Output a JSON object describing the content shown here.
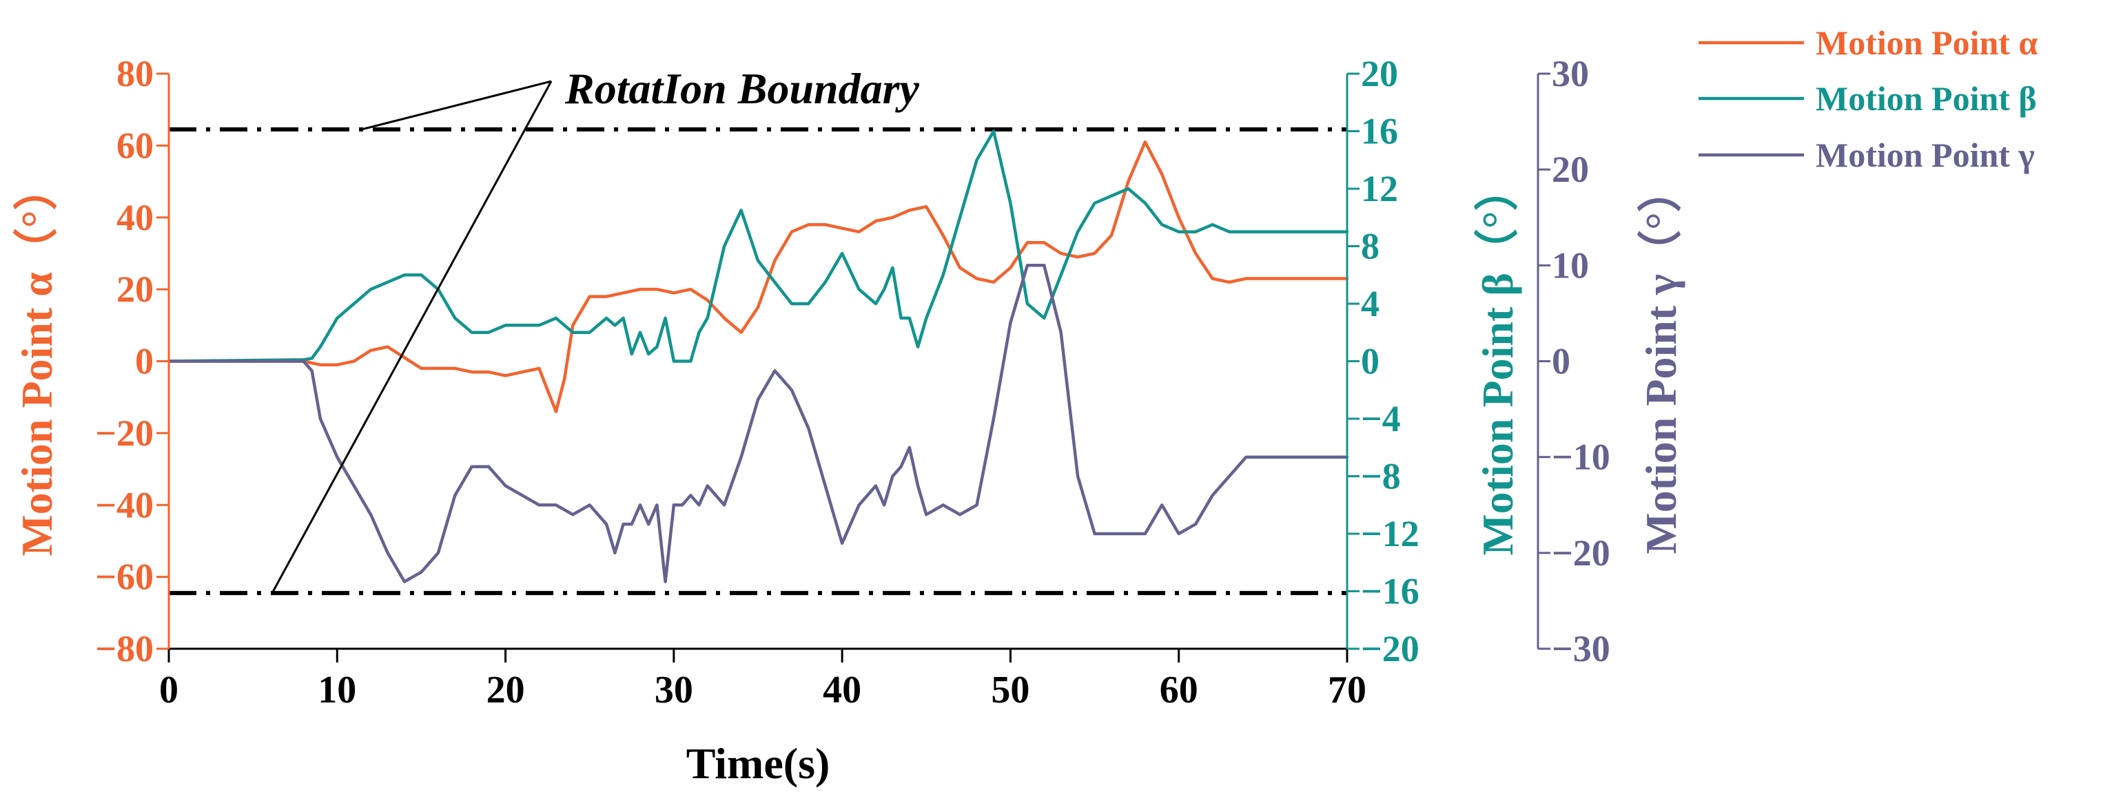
{
  "colors": {
    "alpha": "#F26430",
    "beta": "#12948E",
    "gamma": "#65628F",
    "axis": "#000000"
  },
  "chart_data": {
    "type": "line",
    "title": "",
    "xlabel": "Time(s)",
    "xlim": [
      0,
      70
    ],
    "xticks": [
      0,
      10,
      20,
      30,
      40,
      50,
      60,
      70
    ],
    "grid": false,
    "legend_position": "top-right, outside plot",
    "axes": [
      {
        "id": "alpha",
        "label": "Motion Point α（°）",
        "side": "left",
        "ylim": [
          -80,
          80
        ],
        "ticks": [
          -80,
          -60,
          -40,
          -20,
          0,
          20,
          40,
          60,
          80
        ]
      },
      {
        "id": "beta",
        "label": "Motion Point β（°）",
        "side": "right",
        "ylim": [
          -20,
          20
        ],
        "ticks": [
          -20,
          -16,
          -12,
          -8,
          -4,
          0,
          4,
          8,
          12,
          16,
          20
        ]
      },
      {
        "id": "gamma",
        "label": "Motion Point γ（°）",
        "side": "right-offset",
        "ylim": [
          -30,
          30
        ],
        "ticks": [
          -30,
          -20,
          -10,
          0,
          10,
          20,
          30
        ]
      }
    ],
    "series": [
      {
        "name": "Motion Point α",
        "axis": "alpha",
        "x": [
          0,
          8,
          9,
          10,
          11,
          12,
          13,
          14,
          15,
          16,
          17,
          18,
          19,
          20,
          21,
          22,
          22.5,
          23,
          23.5,
          24,
          25,
          26,
          27,
          28,
          29,
          30,
          31,
          32,
          33,
          34,
          35,
          36,
          37,
          38,
          39,
          40,
          41,
          42,
          43,
          44,
          45,
          46,
          47,
          48,
          49,
          50,
          51,
          52,
          53,
          54,
          55,
          56,
          57,
          58,
          59,
          60,
          61,
          62,
          63,
          64,
          70
        ],
        "values": [
          0,
          0,
          -1,
          -1,
          0,
          3,
          4,
          1,
          -2,
          -2,
          -2,
          -3,
          -3,
          -4,
          -3,
          -2,
          -8,
          -14,
          -5,
          10,
          18,
          18,
          19,
          20,
          20,
          19,
          20,
          17,
          12,
          8,
          15,
          28,
          36,
          38,
          38,
          37,
          36,
          39,
          40,
          42,
          43,
          35,
          26,
          23,
          22,
          26,
          33,
          33,
          30,
          29,
          30,
          35,
          50,
          61,
          52,
          40,
          30,
          23,
          22,
          23,
          23
        ]
      },
      {
        "name": "Motion Point β",
        "axis": "beta",
        "x": [
          0,
          8,
          8.5,
          9,
          10,
          11,
          12,
          13,
          14,
          15,
          16,
          17,
          18,
          19,
          20,
          21,
          22,
          23,
          24,
          25,
          26,
          26.5,
          27,
          27.5,
          28,
          28.5,
          29,
          29.5,
          30,
          30.5,
          31,
          31.5,
          32,
          33,
          34,
          35,
          36,
          37,
          38,
          39,
          40,
          41,
          42,
          42.5,
          43,
          43.5,
          44,
          44.5,
          45,
          46,
          47,
          48,
          49,
          50,
          51,
          52,
          53,
          54,
          55,
          56,
          57,
          58,
          59,
          60,
          61,
          62,
          63,
          64,
          70
        ],
        "values": [
          0,
          0.1,
          0.2,
          1,
          3,
          4,
          5,
          5.5,
          6,
          6,
          5,
          3,
          2,
          2,
          2.5,
          2.5,
          2.5,
          3,
          2,
          2,
          3,
          2.5,
          3,
          0.5,
          2,
          0.5,
          1,
          3,
          0,
          0,
          0,
          2,
          3,
          8,
          10.5,
          7,
          5.5,
          4,
          4,
          5.5,
          7.5,
          5,
          4,
          5,
          6.5,
          3,
          3,
          1,
          3,
          6,
          10,
          14,
          16,
          11,
          4,
          3,
          6,
          9,
          11,
          11.5,
          12,
          11,
          9.5,
          9,
          9,
          9.5,
          9,
          9,
          9
        ]
      },
      {
        "name": "Motion Point γ",
        "axis": "gamma",
        "x": [
          0,
          8,
          8.5,
          9,
          10,
          11,
          12,
          13,
          14,
          15,
          16,
          17,
          18,
          19,
          20,
          21,
          22,
          23,
          24,
          25,
          26,
          26.5,
          27,
          27.5,
          28,
          28.5,
          29,
          29.5,
          30,
          30.5,
          31,
          31.5,
          32,
          33,
          34,
          35,
          36,
          37,
          38,
          39,
          40,
          41,
          42,
          42.5,
          43,
          43.5,
          44,
          44.5,
          45,
          46,
          47,
          48,
          49,
          50,
          51,
          52,
          53,
          54,
          55,
          56,
          57,
          58,
          59,
          60,
          61,
          62,
          63,
          64,
          70
        ],
        "values": [
          0,
          0,
          -1,
          -6,
          -10,
          -13,
          -16,
          -20,
          -23,
          -22,
          -20,
          -14,
          -11,
          -11,
          -13,
          -14,
          -15,
          -15,
          -16,
          -15,
          -17,
          -20,
          -17,
          -17,
          -15,
          -17,
          -15,
          -23,
          -15,
          -15,
          -14,
          -15,
          -13,
          -15,
          -10,
          -4,
          -1,
          -3,
          -7,
          -13,
          -19,
          -15,
          -13,
          -15,
          -12,
          -11,
          -9,
          -13,
          -16,
          -15,
          -16,
          -15,
          -6,
          4,
          10,
          10,
          3,
          -12,
          -18,
          -18,
          -18,
          -18,
          -15,
          -18,
          -17,
          -14,
          -12,
          -10,
          -10
        ]
      }
    ],
    "reference_lines": [
      {
        "axis": "alpha",
        "value": 64.5,
        "style": "dash-dot"
      },
      {
        "axis": "alpha",
        "value": -64.5,
        "style": "dash-dot"
      }
    ],
    "annotation": "RotatIon Boundary",
    "legend": [
      "Motion Point α",
      "Motion Point β",
      "Motion Point γ"
    ]
  }
}
